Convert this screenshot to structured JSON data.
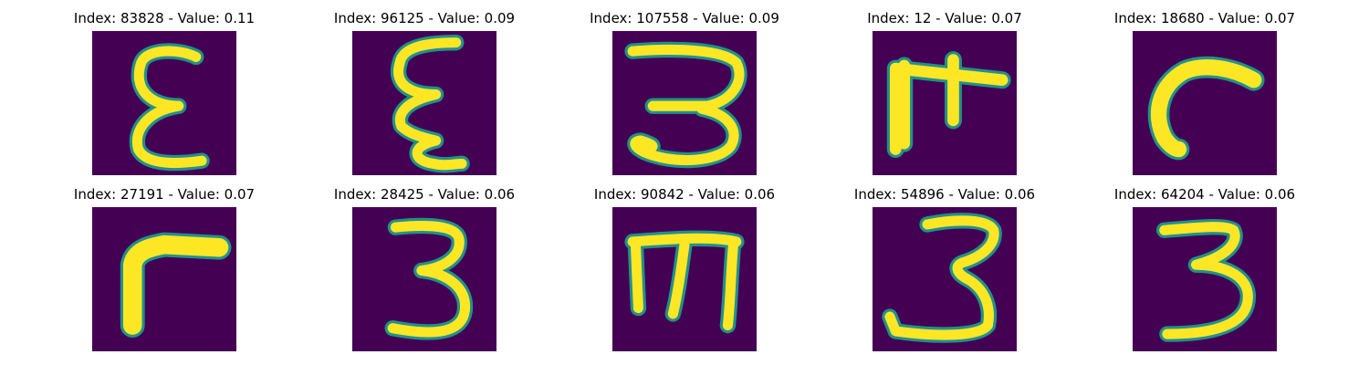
{
  "chart_data": {
    "type": "image-grid",
    "rows": 2,
    "cols": 5,
    "colors": {
      "background": "#440154",
      "stroke": "#fde725",
      "edge": "#21918c"
    },
    "panels": [
      {
        "title": "Index: 83828 - Value: 0.11",
        "index": 83828,
        "value": 0.11,
        "glyph": "ε"
      },
      {
        "title": "Index: 96125 - Value: 0.09",
        "index": 96125,
        "value": 0.09,
        "glyph": "ξ"
      },
      {
        "title": "Index: 107558 - Value: 0.09",
        "index": 107558,
        "value": 0.09,
        "glyph": "3"
      },
      {
        "title": "Index: 12 - Value: 0.07",
        "index": 12,
        "value": 0.07,
        "glyph": ""
      },
      {
        "title": "Index: 18680 - Value: 0.07",
        "index": 18680,
        "value": 0.07,
        "glyph": ""
      },
      {
        "title": "Index: 27191 - Value: 0.07",
        "index": 27191,
        "value": 0.07,
        "glyph": "Γ"
      },
      {
        "title": "Index: 28425 - Value: 0.06",
        "index": 28425,
        "value": 0.06,
        "glyph": "3"
      },
      {
        "title": "Index: 90842 - Value: 0.06",
        "index": 90842,
        "value": 0.06,
        "glyph": ""
      },
      {
        "title": "Index: 54896 - Value: 0.06",
        "index": 54896,
        "value": 0.06,
        "glyph": "3"
      },
      {
        "title": "Index: 64204 - Value: 0.06",
        "index": 64204,
        "value": 0.06,
        "glyph": "3"
      }
    ]
  }
}
